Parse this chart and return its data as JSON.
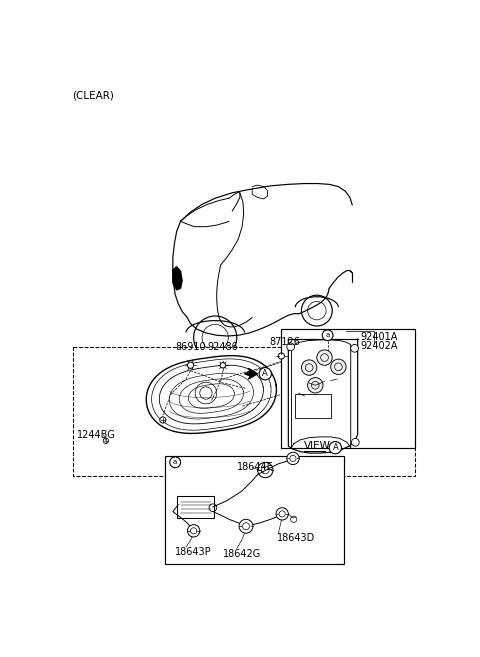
{
  "bg_color": "#ffffff",
  "text_color": "#000000",
  "fig_width": 4.8,
  "fig_height": 6.57,
  "dpi": 100,
  "labels": {
    "clear": "(CLEAR)",
    "part_86910": "86910",
    "part_92486": "92486",
    "part_87126": "87126",
    "part_92401A": "92401A",
    "part_92402A": "92402A",
    "part_1244BG": "1244BG",
    "part_18644E": "18644E",
    "part_18643P": "18643P",
    "part_18642G": "18642G",
    "part_18643D": "18643D",
    "view_A": "VIEW",
    "circle_A": "A",
    "circle_a": "a"
  }
}
